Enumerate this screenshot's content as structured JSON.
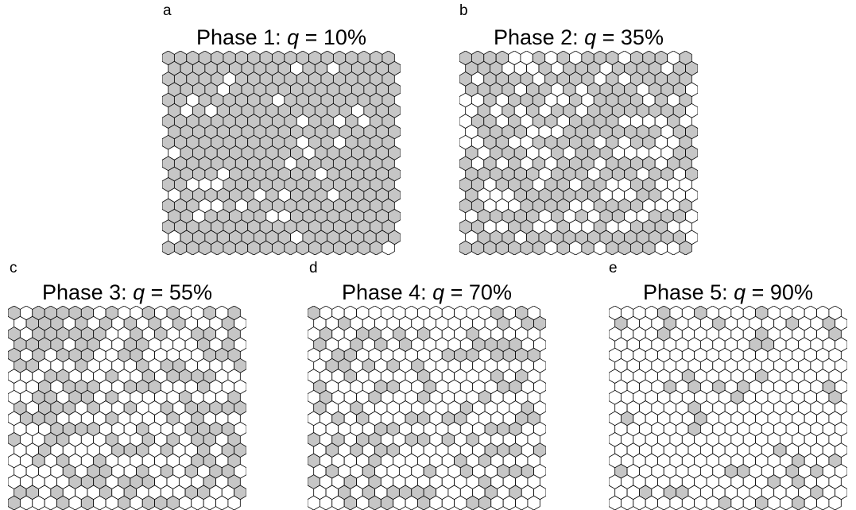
{
  "colors": {
    "occupied": "#c6c6c6",
    "empty": "#ffffff",
    "outline": "#000000"
  },
  "panels": [
    {
      "letter": "a",
      "title_prefix": "Phase 1: ",
      "title_var": "q",
      "title_suffix": " = 10%",
      "occupied_fraction": 0.9,
      "seed": 11
    },
    {
      "letter": "b",
      "title_prefix": "Phase 2: ",
      "title_var": "q",
      "title_suffix": " = 35%",
      "occupied_fraction": 0.65,
      "seed": 23
    },
    {
      "letter": "c",
      "title_prefix": "Phase 3: ",
      "title_var": "q",
      "title_suffix": " = 55%",
      "occupied_fraction": 0.45,
      "seed": 37
    },
    {
      "letter": "d",
      "title_prefix": "Phase 4: ",
      "title_var": "q",
      "title_suffix": " = 70%",
      "occupied_fraction": 0.3,
      "seed": 51
    },
    {
      "letter": "e",
      "title_prefix": "Phase 5: ",
      "title_var": "q",
      "title_suffix": " = 90%",
      "occupied_fraction": 0.1,
      "seed": 67
    }
  ]
}
